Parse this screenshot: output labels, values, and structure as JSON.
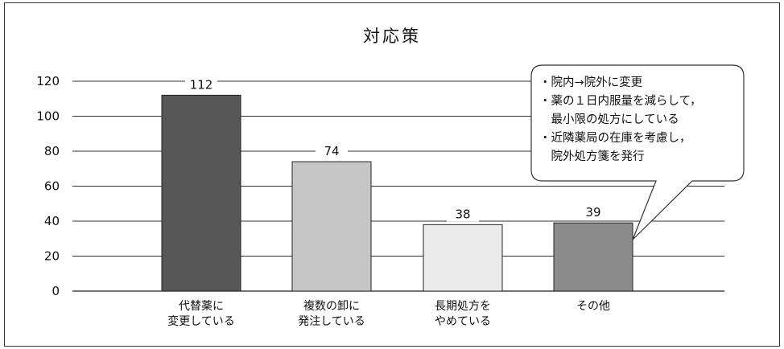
{
  "chart_data": {
    "type": "bar",
    "title": "対応策",
    "categories": [
      [
        "代替薬に",
        "変更している"
      ],
      [
        "複数の卸に",
        "発注している"
      ],
      [
        "長期処方を",
        "やめている"
      ],
      [
        "その他"
      ]
    ],
    "values": [
      112,
      74,
      38,
      39
    ],
    "bar_colors": [
      "#575757",
      "#c6c6c6",
      "#ececec",
      "#8c8c8c"
    ],
    "ylim": [
      0,
      120
    ],
    "yticks": [
      0,
      20,
      40,
      60,
      80,
      100,
      120
    ],
    "grid": true,
    "xlabel": "",
    "ylabel": "",
    "callout": {
      "lines": [
        "・院内→院外に変更",
        "・薬の１日内服量を減らして，",
        "　最小限の処方にしている",
        "・近隣薬局の在庫を考慮し，",
        "　院外処方箋を発行"
      ],
      "points_to_category": 3
    }
  }
}
